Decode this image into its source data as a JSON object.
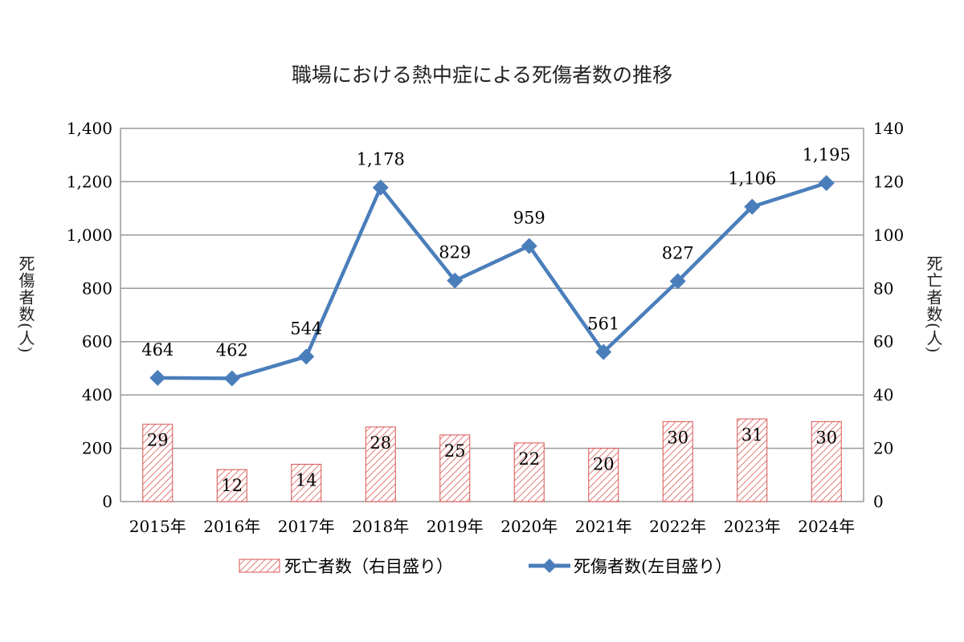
{
  "chart_data": {
    "type": "bar+line",
    "title": "職場における熱中症による死傷者数の推移",
    "categories": [
      "2015年",
      "2016年",
      "2017年",
      "2018年",
      "2019年",
      "2020年",
      "2021年",
      "2022年",
      "2023年",
      "2024年"
    ],
    "ylabel_left": "死傷者数(人)",
    "ylabel_right": "死亡者数(人)",
    "ylim_left": [
      0,
      1400
    ],
    "ylim_right": [
      0,
      140
    ],
    "yticks_left": [
      "0",
      "200",
      "400",
      "600",
      "800",
      "1,000",
      "1,200",
      "1,400"
    ],
    "yticks_right": [
      "0",
      "20",
      "40",
      "60",
      "80",
      "100",
      "120",
      "140"
    ],
    "grid": true,
    "legend_placement": "bottom",
    "series": [
      {
        "name": "死亡者数（右目盛り）",
        "type": "bar",
        "axis": "right",
        "color": "#d9534f",
        "values": [
          29,
          12,
          14,
          28,
          25,
          22,
          20,
          30,
          31,
          30
        ],
        "labels": [
          "29",
          "12",
          "14",
          "28",
          "25",
          "22",
          "20",
          "30",
          "31",
          "30"
        ]
      },
      {
        "name": "死傷者数(左目盛り）",
        "type": "line",
        "axis": "left",
        "color": "#4a7ebb",
        "values": [
          464,
          462,
          544,
          1178,
          829,
          959,
          561,
          827,
          1106,
          1195
        ],
        "labels": [
          "464",
          "462",
          "544",
          "1,178",
          "829",
          "959",
          "561",
          "827",
          "1,106",
          "1,195"
        ]
      }
    ]
  }
}
